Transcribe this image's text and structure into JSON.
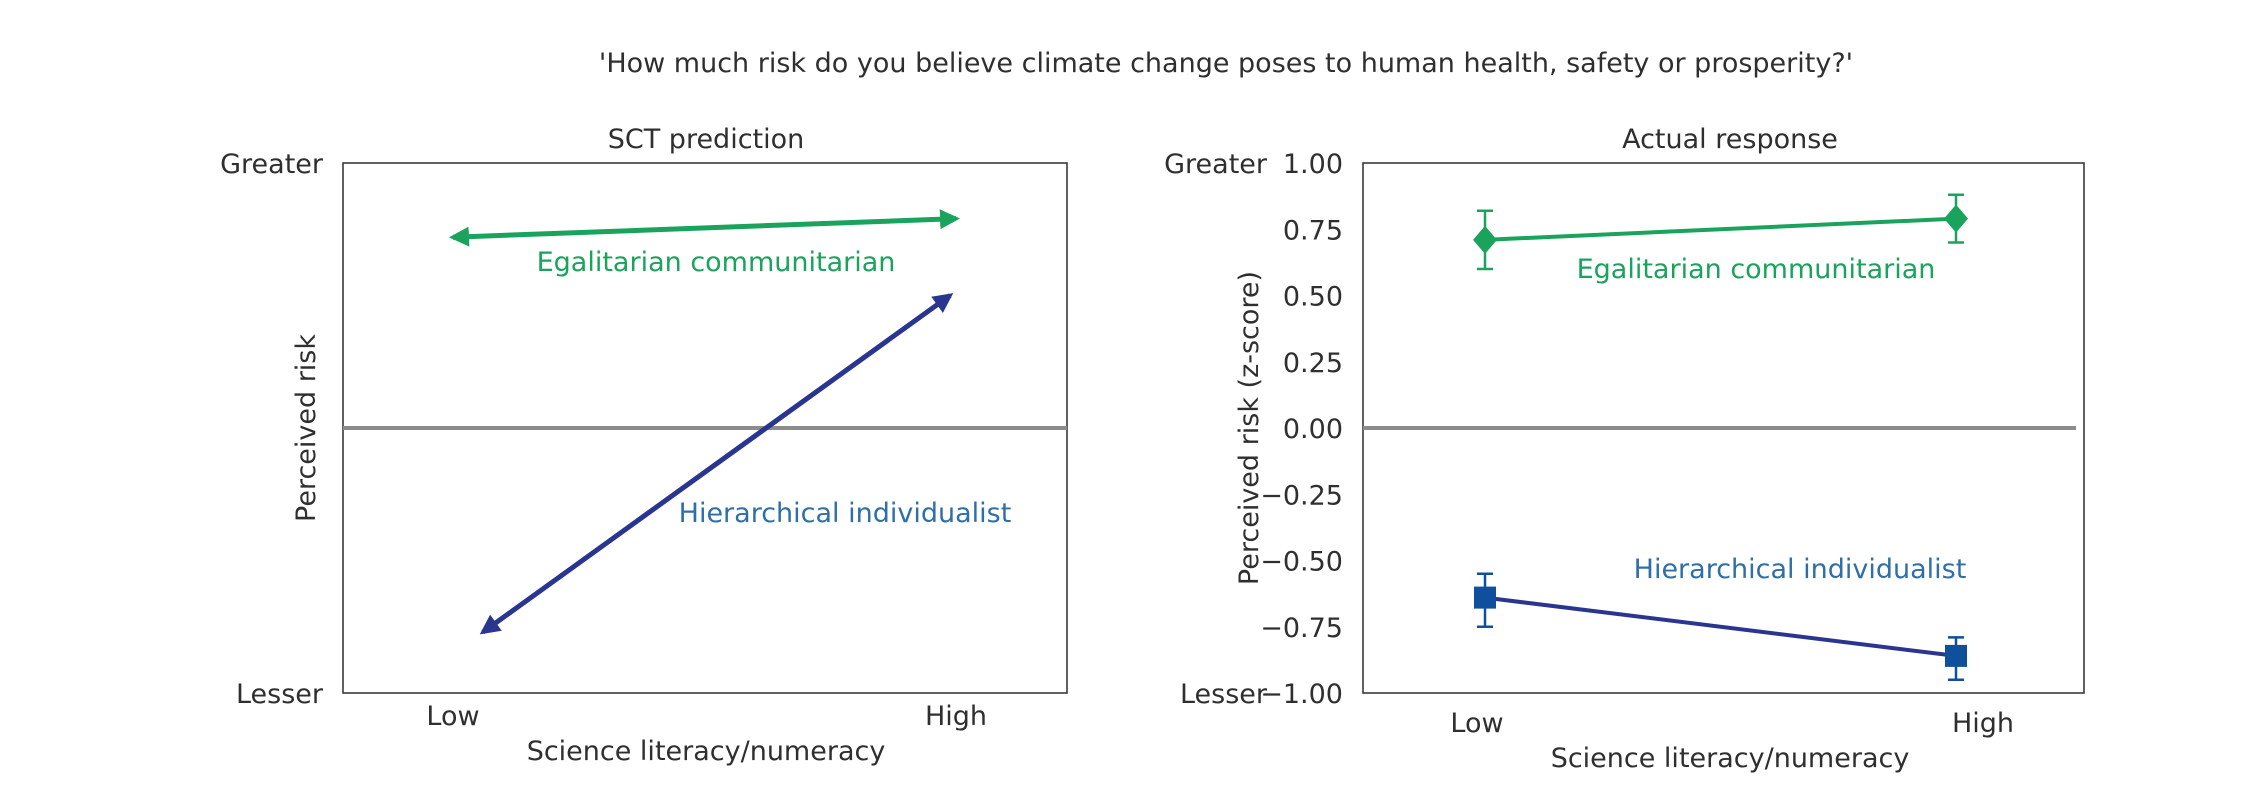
{
  "figure": {
    "title": "'How much risk do you believe climate change poses to human health, safety or prosperity?'"
  },
  "colors": {
    "green": "#1aa35c",
    "blue": "#2a3590",
    "blue_marker": "#0f4f9c",
    "zero_line": "#8c8c8c",
    "frame": "#3a3a3a",
    "label_blue": "#2f6fa8"
  },
  "chart_data": [
    {
      "type": "line",
      "title": "SCT prediction",
      "xlabel": "Science literacy/numeracy",
      "ylabel": "Perceived risk",
      "categories": [
        "Low",
        "High"
      ],
      "y_labels": {
        "top": "Greater",
        "bottom": "Lesser"
      },
      "ylim": [
        -1,
        1
      ],
      "series": [
        {
          "name": "Egalitarian communitarian",
          "values": [
            0.72,
            0.79
          ]
        },
        {
          "name": "Hierarchical individualist",
          "values": [
            -0.77,
            0.5
          ]
        }
      ]
    },
    {
      "type": "line",
      "title": "Actual response",
      "xlabel": "Science literacy/numeracy",
      "ylabel": "Perceived risk (z-score)",
      "categories": [
        "Low",
        "High"
      ],
      "y_labels": {
        "top": "Greater",
        "bottom": "Lesser"
      },
      "ylim": [
        -1,
        1
      ],
      "yticks": [
        "1.00",
        "0.75",
        "0.50",
        "0.25",
        "0.00",
        "−0.25",
        "−0.50",
        "−0.75",
        "−1.00"
      ],
      "ytick_values": [
        1.0,
        0.75,
        0.5,
        0.25,
        0.0,
        -0.25,
        -0.5,
        -0.75,
        -1.0
      ],
      "series": [
        {
          "name": "Egalitarian communitarian",
          "marker": "diamond",
          "values": [
            0.71,
            0.79
          ],
          "err_low": [
            0.6,
            0.7
          ],
          "err_high": [
            0.82,
            0.88
          ]
        },
        {
          "name": "Hierarchical individualist",
          "marker": "square",
          "values": [
            -0.64,
            -0.86
          ],
          "err_low": [
            -0.75,
            -0.95
          ],
          "err_high": [
            -0.55,
            -0.79
          ]
        }
      ]
    }
  ]
}
